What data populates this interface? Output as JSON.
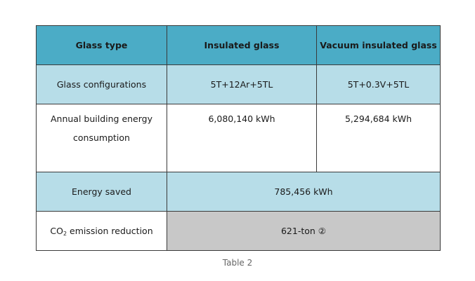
{
  "table": {
    "headers": [
      "Glass type",
      "Insulated glass",
      "Vacuum insulated glass"
    ],
    "rows": {
      "configurations": {
        "label": "Glass configurations",
        "insulated": "5T+12Ar+5TL",
        "vacuum": "5T+0.3V+5TL"
      },
      "energy": {
        "label_line1": "Annual building energy",
        "label_line2": "consumption",
        "insulated": "6,080,140 kWh",
        "vacuum": "5,294,684 kWh"
      },
      "saved": {
        "label": "Energy saved",
        "value": "785,456 kWh"
      },
      "co2": {
        "label_prefix": "CO",
        "label_sub": "2",
        "label_suffix": " emission reduction",
        "value": "621-ton ②"
      }
    },
    "colors": {
      "header_bg": "#4bacc6",
      "light_row_bg": "#b7dde8",
      "grey_cell_bg": "#c8c8c8"
    }
  },
  "caption": "Table 2"
}
